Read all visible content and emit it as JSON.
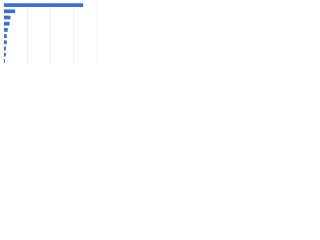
{
  "chart_data": {
    "type": "bar",
    "orientation": "horizontal",
    "categories": [
      null,
      null,
      null,
      null,
      null,
      null,
      null,
      null,
      null,
      null
    ],
    "values": [
      85,
      12,
      7,
      6,
      4,
      3,
      3,
      2,
      2,
      1
    ],
    "color": "#3a6fd0",
    "xlim": [
      0,
      100
    ],
    "xticks": [
      0,
      25,
      50,
      75,
      100
    ],
    "grid": true
  }
}
